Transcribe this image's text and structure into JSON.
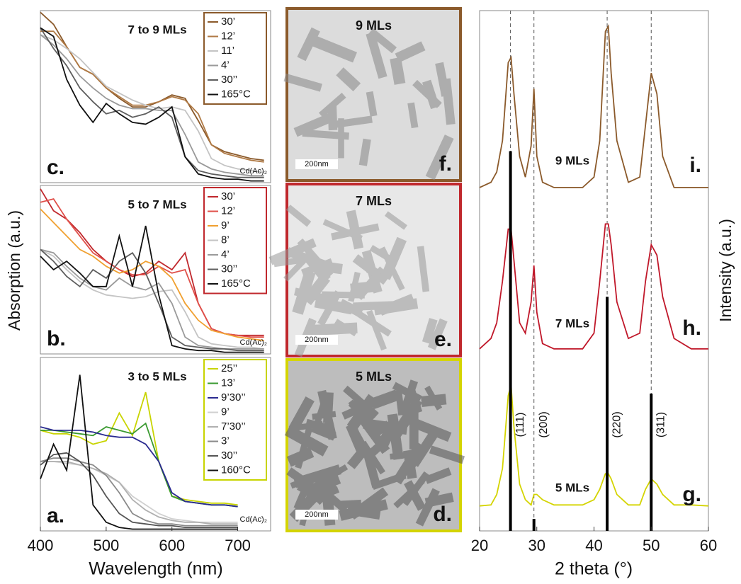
{
  "chart_data": [
    {
      "type": "line",
      "title": "7 to 9 MLs",
      "panel_label": "c.",
      "note": "Cd(Ac)₂",
      "x": [
        400,
        420,
        440,
        460,
        480,
        500,
        520,
        540,
        560,
        580,
        600,
        620,
        640,
        660,
        680,
        700,
        720,
        740
      ],
      "xlim": [
        400,
        750
      ],
      "ylim": [
        0,
        1
      ],
      "series": [
        {
          "name": "30’",
          "color": "#8b5a2b",
          "values": [
            0.99,
            0.92,
            0.79,
            0.67,
            0.63,
            0.55,
            0.49,
            0.44,
            0.44,
            0.47,
            0.51,
            0.49,
            0.36,
            0.22,
            0.18,
            0.16,
            0.14,
            0.13
          ]
        },
        {
          "name": "12’",
          "color": "#b07a45",
          "values": [
            0.88,
            0.88,
            0.79,
            0.67,
            0.63,
            0.55,
            0.5,
            0.45,
            0.45,
            0.47,
            0.5,
            0.48,
            0.4,
            0.22,
            0.17,
            0.15,
            0.13,
            0.12
          ]
        },
        {
          "name": "11’",
          "color": "#c4c4c4",
          "values": [
            0.86,
            0.83,
            0.78,
            0.72,
            0.64,
            0.56,
            0.52,
            0.48,
            0.45,
            0.43,
            0.44,
            0.42,
            0.3,
            0.14,
            0.1,
            0.08,
            0.07,
            0.06
          ]
        },
        {
          "name": "4’",
          "color": "#9a9a9a",
          "values": [
            0.86,
            0.8,
            0.72,
            0.62,
            0.55,
            0.49,
            0.45,
            0.43,
            0.43,
            0.42,
            0.42,
            0.28,
            0.12,
            0.08,
            0.06,
            0.05,
            0.04,
            0.04
          ]
        },
        {
          "name": "30’’",
          "color": "#5e5e5e",
          "values": [
            0.9,
            0.78,
            0.68,
            0.55,
            0.47,
            0.4,
            0.42,
            0.38,
            0.4,
            0.44,
            0.38,
            0.15,
            0.07,
            0.05,
            0.04,
            0.03,
            0.03,
            0.03
          ]
        },
        {
          "name": "165°C",
          "color": "#111111",
          "values": [
            0.9,
            0.85,
            0.6,
            0.45,
            0.35,
            0.46,
            0.4,
            0.35,
            0.34,
            0.38,
            0.44,
            0.15,
            0.05,
            0.03,
            0.02,
            0.02,
            0.01,
            0.01
          ]
        }
      ],
      "legend_border": "#8b5a2b"
    },
    {
      "type": "line",
      "title": "5 to 7 MLs",
      "panel_label": "b.",
      "note": "Cd(Ac)₂",
      "x": [
        400,
        420,
        440,
        460,
        480,
        500,
        520,
        540,
        560,
        580,
        600,
        620,
        640,
        660,
        680,
        700,
        720,
        740
      ],
      "xlim": [
        400,
        750
      ],
      "ylim": [
        0,
        1
      ],
      "series": [
        {
          "name": "30’",
          "color": "#c0282d",
          "values": [
            0.98,
            0.85,
            0.8,
            0.72,
            0.62,
            0.55,
            0.5,
            0.46,
            0.48,
            0.55,
            0.5,
            0.6,
            0.3,
            0.15,
            0.12,
            0.11,
            0.11,
            0.11
          ]
        },
        {
          "name": "12’",
          "color": "#e0504a",
          "values": [
            0.9,
            0.92,
            0.8,
            0.7,
            0.6,
            0.55,
            0.5,
            0.47,
            0.47,
            0.52,
            0.48,
            0.5,
            0.3,
            0.15,
            0.12,
            0.11,
            0.1,
            0.1
          ]
        },
        {
          "name": "9’",
          "color": "#f0a030",
          "values": [
            0.86,
            0.78,
            0.7,
            0.62,
            0.58,
            0.52,
            0.48,
            0.5,
            0.55,
            0.52,
            0.45,
            0.3,
            0.2,
            0.14,
            0.12,
            0.1,
            0.09,
            0.08
          ]
        },
        {
          "name": "8’",
          "color": "#c4c4c4",
          "values": [
            0.62,
            0.58,
            0.5,
            0.43,
            0.38,
            0.35,
            0.34,
            0.33,
            0.34,
            0.37,
            0.38,
            0.25,
            0.1,
            0.06,
            0.05,
            0.04,
            0.04,
            0.03
          ]
        },
        {
          "name": "4’",
          "color": "#9a9a9a",
          "values": [
            0.62,
            0.6,
            0.52,
            0.45,
            0.4,
            0.38,
            0.45,
            0.4,
            0.38,
            0.42,
            0.3,
            0.1,
            0.05,
            0.04,
            0.03,
            0.03,
            0.03,
            0.03
          ]
        },
        {
          "name": "30’’",
          "color": "#5e5e5e",
          "values": [
            0.62,
            0.55,
            0.46,
            0.4,
            0.5,
            0.45,
            0.55,
            0.6,
            0.48,
            0.3,
            0.1,
            0.05,
            0.04,
            0.03,
            0.03,
            0.02,
            0.02,
            0.02
          ]
        },
        {
          "name": "165°C",
          "color": "#111111",
          "values": [
            0.58,
            0.5,
            0.55,
            0.48,
            0.4,
            0.4,
            0.7,
            0.4,
            0.76,
            0.35,
            0.05,
            0.03,
            0.02,
            0.02,
            0.01,
            0.01,
            0.01,
            0.01
          ]
        }
      ],
      "legend_border": "#c0282d"
    },
    {
      "type": "line",
      "title": "3 to 5 MLs",
      "panel_label": "a.",
      "note": "Cd(Ac)₂",
      "x": [
        400,
        420,
        440,
        460,
        480,
        500,
        520,
        540,
        560,
        580,
        600,
        620,
        640,
        660,
        680,
        700,
        720,
        740
      ],
      "xlim": [
        400,
        750
      ],
      "xticks": [
        400,
        500,
        600,
        700
      ],
      "ylim": [
        0,
        1
      ],
      "x_label": "Wavelength (nm)",
      "y_label": "Absorption (a.u.)",
      "series": [
        {
          "name": "25’’",
          "color": "#c8d400",
          "values": [
            0.58,
            0.56,
            0.56,
            0.54,
            0.5,
            0.52,
            0.68,
            0.55,
            0.8,
            0.4,
            0.2,
            0.18,
            0.17,
            0.16,
            0.16,
            0.15,
            null,
            null
          ]
        },
        {
          "name": "13’",
          "color": "#3a9a30",
          "values": [
            0.58,
            0.58,
            0.57,
            0.56,
            0.55,
            0.6,
            0.58,
            0.56,
            0.62,
            0.4,
            0.2,
            0.17,
            0.16,
            0.15,
            0.15,
            0.14,
            null,
            null
          ]
        },
        {
          "name": "9’30’’",
          "color": "#2a2a90",
          "values": [
            0.6,
            0.58,
            0.58,
            0.58,
            0.57,
            0.55,
            0.54,
            0.54,
            0.5,
            0.4,
            0.22,
            0.17,
            0.16,
            0.15,
            0.15,
            0.14,
            null,
            null
          ]
        },
        {
          "name": "9’",
          "color": "#d0d0d0",
          "values": [
            0.4,
            0.4,
            0.39,
            0.38,
            0.36,
            0.32,
            0.28,
            0.2,
            0.15,
            0.1,
            0.07,
            0.06,
            0.05,
            0.05,
            0.05,
            0.05,
            null,
            null
          ]
        },
        {
          "name": "7’30’’",
          "color": "#b0b0b0",
          "values": [
            0.4,
            0.4,
            0.4,
            0.38,
            0.36,
            0.33,
            0.28,
            0.18,
            0.12,
            0.08,
            0.06,
            0.05,
            0.05,
            0.04,
            0.04,
            0.04,
            null,
            null
          ]
        },
        {
          "name": "3’",
          "color": "#8a8a8a",
          "values": [
            0.4,
            0.42,
            0.42,
            0.4,
            0.38,
            0.32,
            0.22,
            0.1,
            0.06,
            0.04,
            0.04,
            0.03,
            0.03,
            0.03,
            0.03,
            0.03,
            null,
            null
          ]
        },
        {
          "name": "30’’",
          "color": "#555555",
          "values": [
            0.38,
            0.44,
            0.45,
            0.4,
            0.32,
            0.2,
            0.1,
            0.05,
            0.04,
            0.03,
            0.03,
            0.02,
            0.02,
            0.02,
            0.02,
            0.02,
            null,
            null
          ]
        },
        {
          "name": "160°C",
          "color": "#111111",
          "values": [
            0.3,
            0.5,
            0.35,
            0.9,
            0.15,
            0.05,
            0.02,
            0.01,
            0.01,
            0.01,
            0.01,
            0.01,
            0.01,
            0.01,
            0.01,
            0.01,
            null,
            null
          ]
        }
      ],
      "legend_border": "#c8d400"
    },
    {
      "type": "line",
      "x_label": "2 theta (°)",
      "y_label": "Intensity (a.u.)",
      "x": [
        20,
        22,
        23,
        24,
        25,
        25.5,
        26,
        27,
        28,
        29,
        29.5,
        30,
        31,
        33,
        36,
        38,
        40,
        41,
        42,
        42.5,
        43,
        44,
        46,
        48,
        49,
        50,
        51,
        52,
        54,
        57,
        60
      ],
      "xlim": [
        20,
        60
      ],
      "xticks": [
        20,
        30,
        40,
        50,
        60
      ],
      "ylim": [
        0,
        100
      ],
      "series": [
        {
          "name": "9 MLs",
          "panel_label": "i.",
          "color": "#8b5a2b",
          "values": [
            66,
            67,
            69,
            75,
            90,
            91,
            84,
            72,
            68,
            74,
            85,
            72,
            67,
            66,
            66,
            66,
            68,
            75,
            96,
            97,
            88,
            75,
            67,
            68,
            78,
            88,
            84,
            72,
            66,
            66,
            66
          ]
        },
        {
          "name": "7 MLs",
          "panel_label": "h.",
          "color": "#c0182a",
          "values": [
            35,
            37,
            40,
            48,
            58,
            58,
            52,
            40,
            38,
            44,
            51,
            42,
            36,
            35,
            35,
            35,
            38,
            48,
            59,
            59,
            55,
            44,
            37,
            38,
            48,
            55,
            53,
            45,
            37,
            35,
            35
          ]
        },
        {
          "name": "5 MLs",
          "panel_label": "g.",
          "color": "#d4d400",
          "values": [
            4.8,
            5,
            7,
            12,
            26,
            28,
            20,
            9,
            6,
            5,
            7,
            7,
            6,
            5,
            5,
            5,
            6,
            8,
            11,
            11,
            10,
            7,
            5,
            5,
            8,
            10,
            9,
            7,
            5,
            5,
            4.8
          ]
        }
      ],
      "reference": {
        "positions": [
          25.4,
          29.5,
          42.3,
          50.0
        ],
        "heights": [
          73,
          2.3,
          45,
          26.4
        ],
        "labels": [
          "(111)",
          "(200)",
          "(220)",
          "(311)"
        ]
      }
    }
  ],
  "images": [
    {
      "title": "9 MLs",
      "scale_bar": "200nm",
      "label": "f.",
      "border": "#8b5a2b"
    },
    {
      "title": "7 MLs",
      "scale_bar": "200nm",
      "label": "e.",
      "border": "#c0282d"
    },
    {
      "title": "5 MLs",
      "scale_bar": "200nm",
      "label": "d.",
      "border": "#d4d400"
    }
  ]
}
